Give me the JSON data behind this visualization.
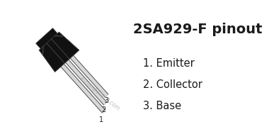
{
  "title": "2SA929-F pinout",
  "pins": [
    {
      "number": "1",
      "name": "Emitter"
    },
    {
      "number": "2",
      "name": "Collector"
    },
    {
      "number": "3",
      "name": "Base"
    }
  ],
  "watermark": "el-component.com",
  "bg_color": "#ffffff",
  "text_color": "#1a1a1a",
  "title_fontsize": 14,
  "pin_fontsize": 10.5,
  "body_color": "#111111",
  "body_top_color": "#222222",
  "lead_light": "#d8d8d8",
  "lead_dark": "#555555"
}
